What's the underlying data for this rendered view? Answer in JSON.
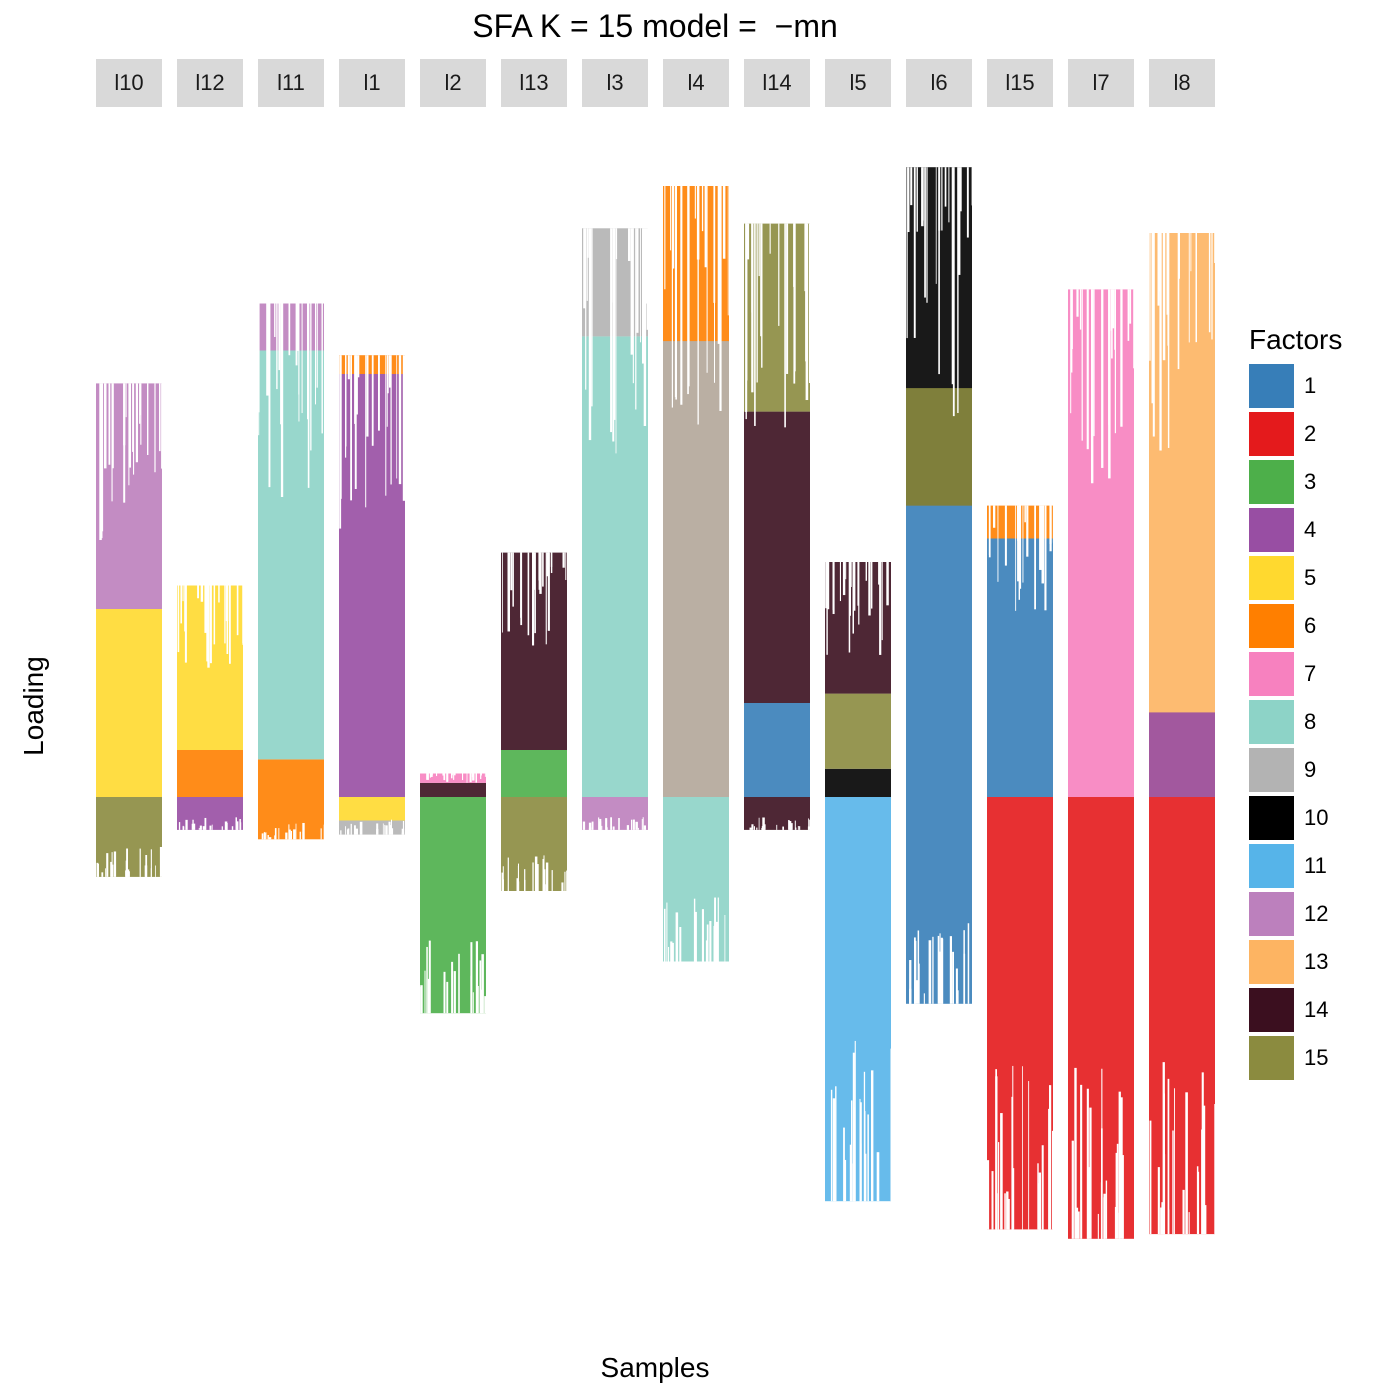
{
  "chart_data": {
    "type": "bar",
    "title": "SFA K = 15 model =  −mn",
    "xlabel": "Samples",
    "ylabel": "Loading",
    "ylim": [
      -1.0,
      1.38
    ],
    "grid": false,
    "legend_position": "right",
    "legend_title": "Factors",
    "factors": [
      {
        "name": "1",
        "color": "#377EB8"
      },
      {
        "name": "2",
        "color": "#E41A1C"
      },
      {
        "name": "3",
        "color": "#4DAF4A"
      },
      {
        "name": "4",
        "color": "#984EA3"
      },
      {
        "name": "5",
        "color": "#FFD92F"
      },
      {
        "name": "6",
        "color": "#FF7F00"
      },
      {
        "name": "7",
        "color": "#F781BF"
      },
      {
        "name": "8",
        "color": "#8DD3C7"
      },
      {
        "name": "9",
        "color": "#B3B3B3"
      },
      {
        "name": "10",
        "color": "#000000"
      },
      {
        "name": "11",
        "color": "#56B4E9"
      },
      {
        "name": "12",
        "color": "#BC80BD"
      },
      {
        "name": "13",
        "color": "#FDB462"
      },
      {
        "name": "14",
        "color": "#3B0F1F"
      },
      {
        "name": "15",
        "color": "#8B8B3F"
      }
    ],
    "panels": [
      {
        "label": "l10",
        "pos": [
          [
            5,
            0.0,
            0.4
          ],
          [
            12,
            0.4,
            0.88
          ]
        ],
        "neg": [
          [
            15,
            0.0,
            -0.17
          ]
        ]
      },
      {
        "label": "l12",
        "pos": [
          [
            6,
            0.0,
            0.1
          ],
          [
            5,
            0.1,
            0.45
          ]
        ],
        "neg": [
          [
            4,
            0.0,
            -0.07
          ]
        ]
      },
      {
        "label": "l11",
        "pos": [
          [
            6,
            0.0,
            0.08
          ],
          [
            8,
            0.08,
            0.95
          ],
          [
            12,
            0.95,
            1.05
          ]
        ],
        "neg": [
          [
            6,
            0.0,
            -0.09
          ]
        ]
      },
      {
        "label": "l1",
        "pos": [
          [
            4,
            0.0,
            0.9
          ],
          [
            6,
            0.9,
            0.94
          ]
        ],
        "neg": [
          [
            5,
            0.0,
            -0.05
          ],
          [
            9,
            -0.05,
            -0.08
          ]
        ]
      },
      {
        "label": "l2",
        "pos": [
          [
            14,
            0.0,
            0.03
          ],
          [
            7,
            0.03,
            0.05
          ]
        ],
        "neg": [
          [
            3,
            0.0,
            -0.46
          ]
        ]
      },
      {
        "label": "l13",
        "pos": [
          [
            3,
            0.0,
            0.1
          ],
          [
            14,
            0.1,
            0.52
          ]
        ],
        "neg": [
          [
            15,
            0.0,
            -0.2
          ]
        ]
      },
      {
        "label": "l3",
        "pos": [
          [
            8,
            0.0,
            0.98
          ],
          [
            9,
            0.98,
            1.21
          ]
        ],
        "neg": [
          [
            12,
            0.0,
            -0.07
          ]
        ]
      },
      {
        "label": "l4",
        "pos": [
          [
            6,
            0.0,
            1.3
          ],
          [
            9,
            0.0,
            0.97
          ]
        ],
        "neg": [
          [
            8,
            0.0,
            -0.35
          ]
        ]
      },
      {
        "label": "l14",
        "pos": [
          [
            1,
            0.0,
            0.2
          ],
          [
            14,
            0.2,
            0.82
          ],
          [
            15,
            0.82,
            1.22
          ]
        ],
        "neg": [
          [
            14,
            0.0,
            -0.07
          ]
        ]
      },
      {
        "label": "l5",
        "pos": [
          [
            10,
            0.0,
            0.06
          ],
          [
            15,
            0.06,
            0.22
          ],
          [
            14,
            0.22,
            0.5
          ]
        ],
        "neg": [
          [
            11,
            0.0,
            -0.86
          ]
        ]
      },
      {
        "label": "l6",
        "pos": [
          [
            1,
            0.0,
            0.62
          ],
          [
            10,
            0.62,
            1.34
          ],
          [
            15,
            0.62,
            0.87
          ]
        ],
        "neg": [
          [
            1,
            0.0,
            -0.44
          ]
        ]
      },
      {
        "label": "l15",
        "pos": [
          [
            1,
            0.0,
            0.55
          ],
          [
            6,
            0.55,
            0.62
          ]
        ],
        "neg": [
          [
            2,
            0.0,
            -0.92
          ]
        ]
      },
      {
        "label": "l7",
        "pos": [
          [
            7,
            0.0,
            1.08
          ]
        ],
        "neg": [
          [
            2,
            0.0,
            -0.94
          ]
        ]
      },
      {
        "label": "l8",
        "pos": [
          [
            13,
            0.0,
            1.2
          ],
          [
            4,
            0.0,
            0.18
          ]
        ],
        "neg": [
          [
            2,
            0.0,
            -0.93
          ]
        ]
      }
    ]
  }
}
